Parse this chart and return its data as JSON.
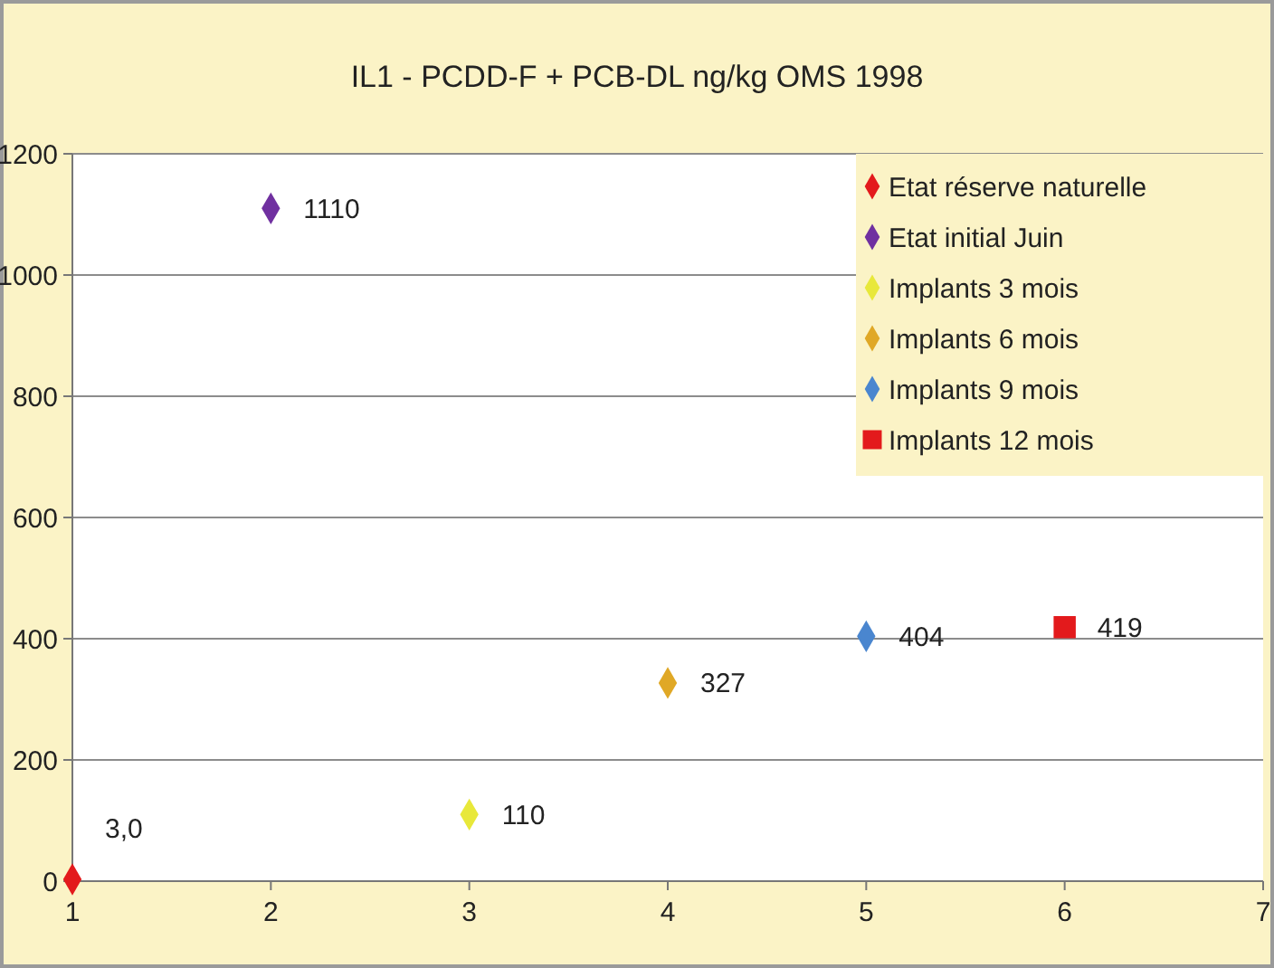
{
  "chart_data": {
    "type": "scatter",
    "title": "IL1 - PCDD-F + PCB-DL ng/kg OMS 1998",
    "xlim": [
      1,
      7
    ],
    "xticks": [
      1,
      2,
      3,
      4,
      5,
      6,
      7
    ],
    "ylim": [
      0,
      1200
    ],
    "yticks": [
      0,
      200,
      400,
      600,
      800,
      1000,
      1200
    ],
    "grid": "y",
    "legend": "top right",
    "series": [
      {
        "name": "Etat réserve naturelle",
        "color": "#e31a1c",
        "marker": "diamond",
        "x": [
          1
        ],
        "values": [
          3.0
        ],
        "value_labels": [
          "3,0"
        ]
      },
      {
        "name": "Etat initial Juin",
        "color": "#7030a0",
        "marker": "diamond",
        "x": [
          2
        ],
        "values": [
          1110
        ],
        "value_labels": [
          "1110"
        ]
      },
      {
        "name": "Implants 3 mois",
        "color": "#e8e83a",
        "marker": "diamond",
        "x": [
          3
        ],
        "values": [
          110
        ],
        "value_labels": [
          "110"
        ]
      },
      {
        "name": "Implants 6 mois",
        "color": "#e0a826",
        "marker": "diamond",
        "x": [
          4
        ],
        "values": [
          327
        ],
        "value_labels": [
          "327"
        ]
      },
      {
        "name": "Implants 9 mois",
        "color": "#4a86cf",
        "marker": "diamond",
        "x": [
          5
        ],
        "values": [
          404
        ],
        "value_labels": [
          "404"
        ]
      },
      {
        "name": "Implants 12 mois",
        "color": "#e31a1c",
        "marker": "square",
        "x": [
          6
        ],
        "values": [
          419
        ],
        "value_labels": [
          "419"
        ]
      }
    ]
  }
}
